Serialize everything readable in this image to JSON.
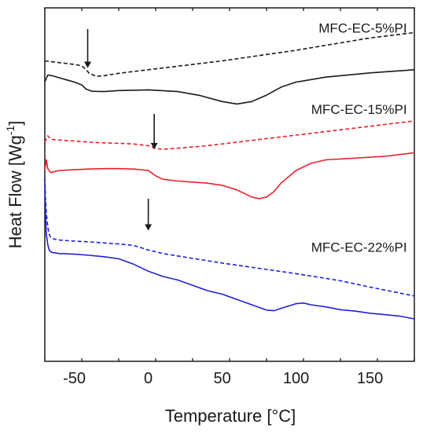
{
  "chart_data": {
    "type": "line",
    "title": "",
    "xlabel": "Temperature [°C]",
    "ylabel": "Heat Flow [Wg",
    "ylabel_sup": "-1",
    "ylabel_end": "]",
    "xlim": [
      -70,
      180
    ],
    "ylim": [
      0,
      100
    ],
    "xticks": [
      -50,
      0,
      50,
      100,
      150
    ],
    "yticks_labeled": false,
    "grid": false,
    "legend": "none",
    "series_labels": [
      {
        "text": "MFC-EC-5%PI",
        "x": 175,
        "y": 93
      },
      {
        "text": "MFC-EC-15%PI",
        "x": 175,
        "y": 70
      },
      {
        "text": "MFC-EC-22%PI",
        "x": 175,
        "y": 31
      }
    ],
    "arrows": [
      {
        "x": -41,
        "y_tip": 83,
        "y_tail": 94
      },
      {
        "x": 4,
        "y_tip": 60,
        "y_tail": 70
      },
      {
        "x": 0,
        "y_tip": 37,
        "y_tail": 46
      }
    ],
    "series": [
      {
        "group": "MFC-EC-5%PI",
        "style": "dashed",
        "color": "#1a1a1a",
        "x": [
          -70,
          -60,
          -50,
          -45,
          -42,
          -40,
          -35,
          -30,
          -20,
          0,
          50,
          100,
          150,
          180
        ],
        "y": [
          85,
          84.5,
          84,
          83.6,
          82.5,
          81.5,
          80.6,
          80.8,
          81.5,
          82.5,
          85,
          88,
          91.5,
          93
        ]
      },
      {
        "group": "MFC-EC-5%PI",
        "style": "solid",
        "color": "#1a1a1a",
        "x": [
          -70,
          -68,
          -65,
          -60,
          -55,
          -50,
          -45,
          -42,
          -38,
          -30,
          -20,
          0,
          20,
          35,
          50,
          60,
          70,
          80,
          90,
          100,
          120,
          150,
          180
        ],
        "y": [
          79,
          81,
          80.8,
          80.2,
          79.6,
          79,
          78.2,
          77,
          76.4,
          76.3,
          76.6,
          76.8,
          76.3,
          75.2,
          73.5,
          72.8,
          73.5,
          75.3,
          77.6,
          79,
          80.4,
          81.6,
          82.5
        ]
      },
      {
        "group": "MFC-EC-15%PI",
        "style": "dashed",
        "color": "#e8202a",
        "x": [
          -70,
          -68,
          -66,
          -60,
          -50,
          -40,
          -30,
          -20,
          -10,
          0,
          5,
          10,
          20,
          40,
          60,
          80,
          100,
          120,
          140,
          160,
          180
        ],
        "y": [
          62,
          63.8,
          62.8,
          62.6,
          62.3,
          62,
          61.8,
          61.7,
          61.5,
          61,
          60.2,
          60,
          60.3,
          61,
          62,
          63,
          64,
          65,
          66,
          67,
          68
        ]
      },
      {
        "group": "MFC-EC-15%PI",
        "style": "solid",
        "color": "#e8202a",
        "x": [
          -70,
          -69,
          -68,
          -66,
          -63,
          -60,
          -50,
          -40,
          -30,
          -20,
          -10,
          0,
          5,
          10,
          20,
          30,
          40,
          50,
          60,
          70,
          75,
          80,
          85,
          90,
          100,
          110,
          120,
          140,
          160,
          180
        ],
        "y": [
          54,
          57,
          54.5,
          53.4,
          53.7,
          54,
          54.2,
          54.4,
          54.5,
          54.5,
          54.4,
          54,
          52.5,
          51.5,
          51,
          50.7,
          50.4,
          49.8,
          48.5,
          46.5,
          46,
          46.5,
          48,
          50.5,
          54,
          56,
          57,
          57.5,
          58,
          59
        ]
      },
      {
        "group": "MFC-EC-22%PI",
        "style": "dashed",
        "color": "#2020d8",
        "x": [
          -70,
          -69.5,
          -69,
          -68,
          -67,
          -66,
          -65,
          -63,
          -60,
          -50,
          -40,
          -30,
          -20,
          -10,
          0,
          10,
          20,
          50,
          80,
          100,
          130,
          150,
          180
        ],
        "y": [
          52,
          46,
          42,
          38,
          36,
          35,
          34.8,
          34.5,
          34.3,
          34,
          33.8,
          33.5,
          33.2,
          32.8,
          31.5,
          30.5,
          29.8,
          27.8,
          26,
          24.8,
          22.8,
          21,
          18.5
        ]
      },
      {
        "group": "MFC-EC-22%PI",
        "style": "solid",
        "color": "#2020d8",
        "x": [
          -70,
          -69.5,
          -69,
          -68,
          -67,
          -66,
          -65,
          -63,
          -60,
          -50,
          -40,
          -30,
          -20,
          -10,
          0,
          10,
          20,
          30,
          40,
          50,
          60,
          70,
          80,
          85,
          90,
          100,
          105,
          110,
          120,
          130,
          140,
          150,
          160,
          170,
          180
        ],
        "y": [
          50,
          42,
          36,
          33,
          31.5,
          31,
          30.8,
          30.7,
          30.5,
          30.3,
          30,
          29.6,
          29,
          27.5,
          25.5,
          24,
          23,
          21.5,
          20,
          19,
          17.5,
          16,
          14.5,
          14.3,
          15,
          16.3,
          16.5,
          16,
          15.4,
          14.6,
          14.2,
          13.6,
          13.2,
          12.8,
          12
        ]
      }
    ]
  }
}
